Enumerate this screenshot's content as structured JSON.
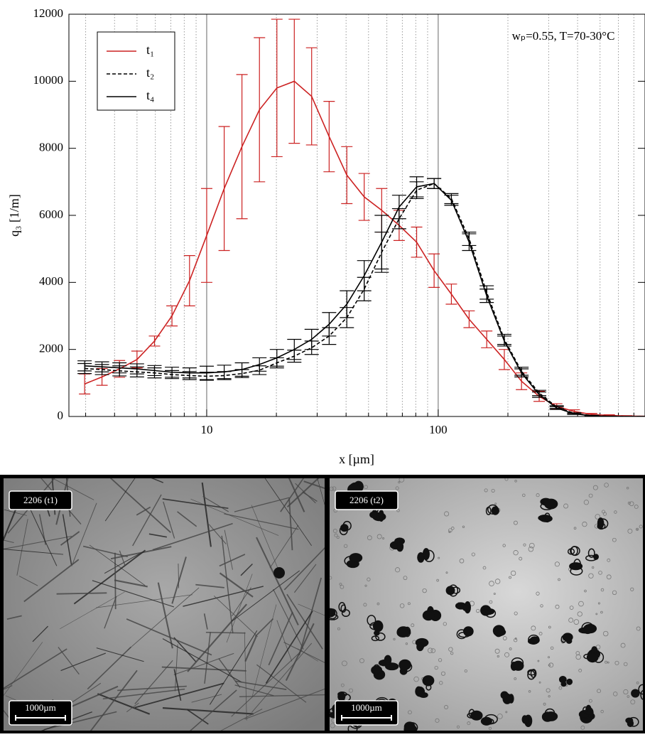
{
  "chart_data": {
    "type": "line",
    "annotation": "wₚ=0.55, T=70-30°C",
    "xlabel": "x [µm]",
    "ylabel": "q₃ [1/m]",
    "xscale": "log",
    "xlim": [
      2.54,
      782
    ],
    "xticks": [
      10,
      100
    ],
    "x_minor_ticks": [
      3,
      4,
      5,
      6,
      7,
      8,
      9,
      20,
      30,
      40,
      50,
      60,
      70,
      80,
      90,
      200,
      300,
      400,
      500,
      600,
      700
    ],
    "ylim": [
      0,
      12000
    ],
    "yticks": [
      0,
      2000,
      4000,
      6000,
      8000,
      10000,
      12000
    ],
    "grid": true,
    "legend": "upper left",
    "x": [
      2.97,
      3.53,
      4.2,
      5,
      5.95,
      7.08,
      8.43,
      10,
      11.9,
      14.2,
      16.9,
      20.1,
      23.9,
      28.4,
      33.8,
      40.3,
      47.9,
      57,
      67.8,
      80.7,
      96,
      114,
      136,
      162,
      193,
      229,
      273,
      325,
      387,
      460,
      548,
      652,
      776
    ],
    "series": [
      {
        "name": "t₁",
        "color": "#cc2222",
        "linestyle": "solid",
        "values": [
          970,
          1180,
          1420,
          1700,
          2250,
          3000,
          4050,
          5400,
          6800,
          8050,
          9150,
          9800,
          10000,
          9550,
          8350,
          7200,
          6550,
          6150,
          5700,
          5200,
          4350,
          3650,
          2900,
          2300,
          1700,
          1050,
          600,
          300,
          150,
          60,
          30,
          15,
          5
        ],
        "errors": [
          300,
          250,
          250,
          250,
          150,
          300,
          750,
          1400,
          1850,
          2150,
          2150,
          2050,
          1850,
          1450,
          1050,
          850,
          700,
          650,
          450,
          450,
          500,
          300,
          250,
          250,
          300,
          250,
          150,
          80,
          50,
          30,
          20,
          10,
          5
        ]
      },
      {
        "name": "t₂",
        "color": "#000000",
        "linestyle": "dashed",
        "values": [
          1430,
          1400,
          1360,
          1330,
          1300,
          1250,
          1220,
          1200,
          1220,
          1280,
          1380,
          1600,
          1800,
          2050,
          2400,
          2950,
          3800,
          4900,
          5900,
          6750,
          6950,
          6500,
          5300,
          3700,
          2300,
          1350,
          700,
          280,
          90,
          25,
          5,
          0,
          0
        ],
        "errors": [
          150,
          150,
          150,
          150,
          150,
          120,
          120,
          120,
          120,
          120,
          130,
          150,
          180,
          200,
          250,
          300,
          350,
          600,
          300,
          250,
          150,
          150,
          200,
          200,
          150,
          120,
          80,
          40,
          20,
          10,
          5,
          0,
          0
        ]
      },
      {
        "name": "t₄",
        "color": "#000000",
        "linestyle": "solid",
        "values": [
          1510,
          1480,
          1450,
          1420,
          1370,
          1320,
          1300,
          1300,
          1330,
          1400,
          1550,
          1750,
          2000,
          2300,
          2750,
          3350,
          4200,
          5200,
          6250,
          6850,
          6950,
          6450,
          5200,
          3600,
          2250,
          1300,
          650,
          250,
          80,
          20,
          5,
          0,
          0
        ],
        "errors": [
          150,
          150,
          150,
          150,
          150,
          150,
          150,
          200,
          200,
          200,
          200,
          250,
          300,
          300,
          350,
          400,
          450,
          800,
          350,
          300,
          150,
          150,
          250,
          200,
          150,
          120,
          80,
          40,
          20,
          10,
          5,
          0,
          0
        ]
      }
    ]
  },
  "images": [
    {
      "label": "2206 (t1)",
      "scale": "1000µm"
    },
    {
      "label": "2206 (t2)",
      "scale": "1000µm"
    }
  ]
}
